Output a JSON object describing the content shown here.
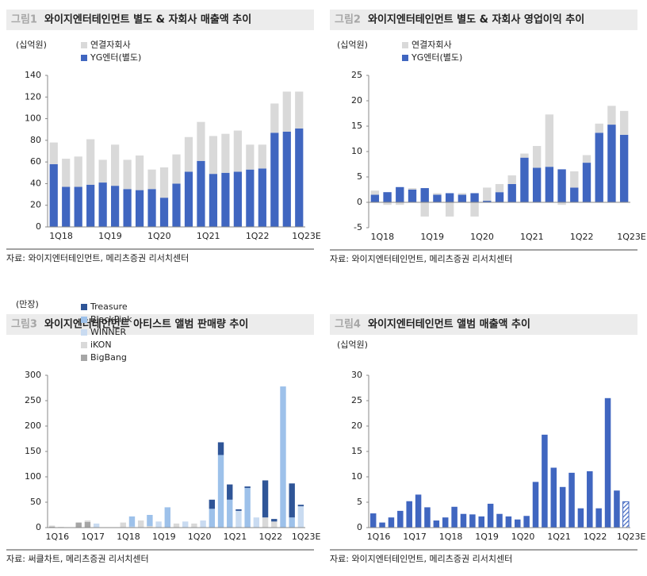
{
  "chart_data": [
    {
      "type": "bar",
      "figure_label": "그림1",
      "title": "와이지엔터테인먼트 별도 & 자회사 매출액 추이",
      "unit": "(십억원)",
      "categories": [
        "1Q18",
        null,
        null,
        null,
        "1Q19",
        null,
        null,
        null,
        "1Q20",
        null,
        null,
        null,
        "1Q21",
        null,
        null,
        null,
        "1Q22",
        null,
        null,
        null,
        "1Q23E"
      ],
      "series": [
        {
          "name": "YG엔터(별도)",
          "color": "#4066c0",
          "values": [
            58,
            37,
            37,
            39,
            41,
            38,
            35,
            34,
            35,
            27,
            40,
            51,
            61,
            49,
            50,
            51,
            53,
            54,
            87,
            88,
            91
          ]
        },
        {
          "name": "연결자회사",
          "color": "#d9d9d9",
          "values": [
            20,
            26,
            28,
            42,
            21,
            38,
            27,
            32,
            18,
            28,
            27,
            32,
            36,
            35,
            36,
            38,
            23,
            22,
            27,
            37,
            34
          ]
        }
      ],
      "ylim": [
        0,
        140
      ],
      "yticks": [
        0,
        20,
        40,
        60,
        80,
        100,
        120,
        140
      ],
      "source": "자료: 와이지엔터테인먼트, 메리츠증권 리서치센터"
    },
    {
      "type": "bar",
      "figure_label": "그림2",
      "title": "와이지엔터테인먼트 별도 & 자회사 영업이익 추이",
      "unit": "(십억원)",
      "categories": [
        "1Q18",
        null,
        null,
        null,
        "1Q19",
        null,
        null,
        null,
        "1Q20",
        null,
        null,
        null,
        "1Q21",
        null,
        null,
        null,
        "1Q22",
        null,
        null,
        null,
        "1Q23E"
      ],
      "series": [
        {
          "name": "YG엔터(별도)",
          "color": "#4066c0",
          "values": [
            1.5,
            2.0,
            3.0,
            2.5,
            2.8,
            1.5,
            1.8,
            1.5,
            1.8,
            0.3,
            2.0,
            3.6,
            8.8,
            6.8,
            7.0,
            6.5,
            2.9,
            7.8,
            13.7,
            15.3,
            13.3
          ]
        },
        {
          "name": "연결자회사",
          "color": "#d9d9d9",
          "values": [
            0.8,
            -0.5,
            -0.5,
            0.3,
            -2.8,
            0.3,
            -2.8,
            0.3,
            -2.8,
            2.6,
            1.6,
            1.7,
            0.8,
            4.3,
            10.3,
            -0.5,
            3.2,
            1.5,
            1.8,
            3.7,
            4.7
          ]
        }
      ],
      "ylim": [
        -5,
        25
      ],
      "yticks": [
        -5,
        0,
        5,
        10,
        15,
        20,
        25
      ],
      "source": "자료: 와이지엔터테인먼트, 메리츠증권 리서치센터"
    },
    {
      "type": "bar",
      "figure_label": "그림3",
      "title": "와이지엔터테인먼트 아티스트 앨범 판매량 추이",
      "unit": "(만장)",
      "categories": [
        "1Q16",
        null,
        null,
        null,
        "1Q17",
        null,
        null,
        null,
        "1Q18",
        null,
        null,
        null,
        "1Q19",
        null,
        null,
        null,
        "1Q20",
        null,
        null,
        null,
        "1Q21",
        null,
        null,
        null,
        "1Q22",
        null,
        null,
        null,
        "1Q23E"
      ],
      "series": [
        {
          "name": "BigBang",
          "color": "#a6a6a6",
          "values": [
            2,
            1,
            0,
            10,
            11,
            0,
            0,
            0,
            0,
            0,
            0,
            0,
            0,
            0,
            0,
            0,
            0,
            0,
            0,
            0,
            0,
            0,
            0,
            0,
            0,
            0,
            0,
            0,
            0
          ]
        },
        {
          "name": "iKON",
          "color": "#d9d9d9",
          "values": [
            2,
            0,
            0,
            0,
            3,
            0,
            0,
            0,
            10,
            0,
            14,
            3,
            0,
            0,
            8,
            0,
            8,
            0,
            0,
            0,
            0,
            0,
            0,
            0,
            20,
            12,
            0,
            0,
            0
          ]
        },
        {
          "name": "WINNER",
          "color": "#c9dbf1",
          "values": [
            0,
            0,
            0,
            0,
            0,
            8,
            0,
            0,
            0,
            2,
            0,
            0,
            12,
            0,
            0,
            12,
            0,
            14,
            0,
            0,
            0,
            33,
            0,
            20,
            0,
            0,
            0,
            0,
            42
          ]
        },
        {
          "name": "BlackPink",
          "color": "#9dc1ea",
          "values": [
            0,
            0,
            0,
            0,
            0,
            0,
            0,
            0,
            0,
            20,
            0,
            22,
            0,
            40,
            0,
            0,
            0,
            0,
            37,
            143,
            55,
            0,
            78,
            0,
            0,
            0,
            278,
            20,
            0
          ]
        },
        {
          "name": "Treasure",
          "color": "#2f5597",
          "values": [
            0,
            0,
            0,
            0,
            0,
            0,
            0,
            0,
            0,
            0,
            0,
            0,
            0,
            0,
            0,
            0,
            0,
            0,
            18,
            25,
            30,
            3,
            3,
            0,
            73,
            5,
            0,
            67,
            3
          ]
        }
      ],
      "ylim": [
        0,
        300
      ],
      "yticks": [
        0,
        50,
        100,
        150,
        200,
        250,
        300
      ],
      "source": "자료: 써클차트, 메리츠증권 리서치센터"
    },
    {
      "type": "bar",
      "figure_label": "그림4",
      "title": "와이지엔터테인먼트 앨범 매출액 추이",
      "unit": "(십억원)",
      "categories": [
        "1Q16",
        null,
        null,
        null,
        "1Q17",
        null,
        null,
        null,
        "1Q18",
        null,
        null,
        null,
        "1Q19",
        null,
        null,
        null,
        "1Q20",
        null,
        null,
        null,
        "1Q21",
        null,
        null,
        null,
        "1Q22",
        null,
        null,
        null,
        "1Q23E"
      ],
      "values": [
        2.8,
        1.0,
        2.0,
        3.3,
        5.2,
        6.5,
        4.0,
        1.4,
        2.0,
        4.1,
        2.7,
        2.6,
        2.2,
        4.7,
        2.7,
        2.2,
        1.6,
        2.3,
        9.0,
        18.3,
        11.8,
        8.0,
        10.8,
        3.8,
        11.1,
        3.8,
        25.5,
        7.3,
        5.1
      ],
      "color": "#4066c0",
      "hatched_category": "1Q23E",
      "ylim": [
        0,
        30
      ],
      "yticks": [
        0,
        5,
        10,
        15,
        20,
        25,
        30
      ],
      "source": "자료: 와이지엔터테인먼트, 메리츠증권 리서치센터"
    }
  ]
}
